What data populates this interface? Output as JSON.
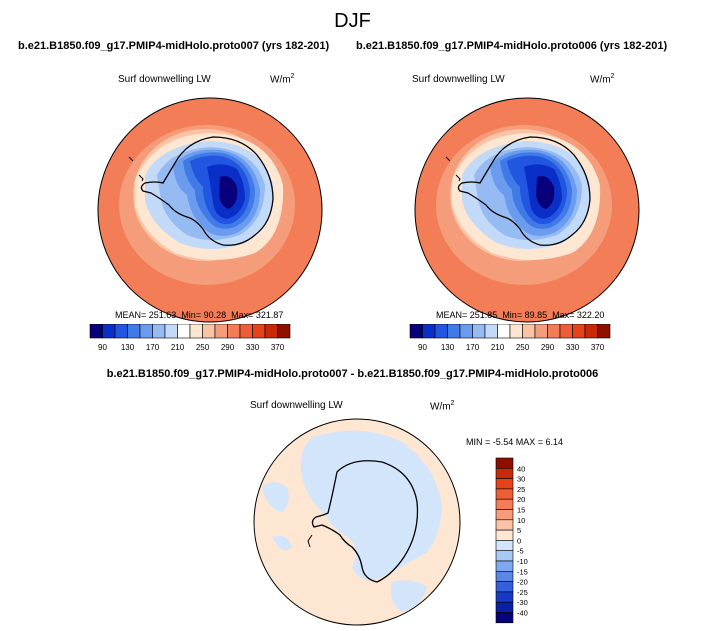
{
  "title": "DJF",
  "panel_left": {
    "case": "b.e21.B1850.f09_g17.PMIP4-midHolo.proto007 (yrs 182-201)",
    "variable": "Surf downwelling LW",
    "units": "W/m",
    "units_exp": "2",
    "stats": {
      "mean": "MEAN= 251.63",
      "min": "Min= 90.28",
      "max": "Max= 321.87"
    }
  },
  "panel_right": {
    "case": "b.e21.B1850.f09_g17.PMIP4-midHolo.proto006 (yrs 182-201)",
    "variable": "Surf downwelling LW",
    "units": "W/m",
    "units_exp": "2",
    "stats": {
      "mean": "MEAN= 251.85",
      "min": "Min= 89.85",
      "max": "Max= 322.20"
    }
  },
  "panel_diff": {
    "title": "b.e21.B1850.f09_g17.PMIP4-midHolo.proto007 - b.e21.B1850.f09_g17.PMIP4-midHolo.proto006",
    "variable": "Surf downwelling LW",
    "units": "W/m",
    "units_exp": "2",
    "stats": "MIN = -5.54 MAX = 6.14"
  },
  "colorbar_main": {
    "labels": [
      "90",
      "130",
      "170",
      "210",
      "250",
      "290",
      "330",
      "370"
    ],
    "colors": [
      "#08007a",
      "#0a2fc9",
      "#2255e0",
      "#3f7ae6",
      "#6a9bef",
      "#96bbf3",
      "#c2d9f8",
      "#ffffff",
      "#fde6d2",
      "#f9c3a4",
      "#f59d7a",
      "#f27d57",
      "#ee5e36",
      "#e54218",
      "#c82a08",
      "#8e0f00"
    ]
  },
  "colorbar_diff": {
    "labels": [
      "40",
      "30",
      "25",
      "20",
      "15",
      "10",
      "5",
      "0",
      "-5",
      "-10",
      "-15",
      "-20",
      "-25",
      "-30",
      "-40"
    ],
    "colors": [
      "#8e0f00",
      "#c82a08",
      "#e54218",
      "#ee5e36",
      "#f27d57",
      "#f59d7a",
      "#f9c3a4",
      "#fde6d2",
      "#d3e5fb",
      "#a8c9f5",
      "#7ea8ef",
      "#5a86e8",
      "#3460dc",
      "#1739c8",
      "#0a1fa3",
      "#08007a"
    ]
  }
}
